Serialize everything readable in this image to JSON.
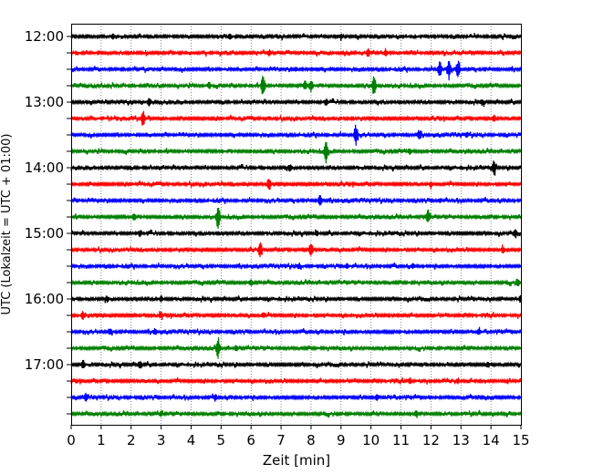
{
  "chart_data": {
    "type": "line",
    "title": "",
    "xlabel": "Zeit  [min]",
    "ylabel": "UTC (Lokalzeit = UTC + 01:00)",
    "xlim": [
      0,
      15
    ],
    "x_ticks": [
      "0",
      "1",
      "2",
      "3",
      "4",
      "5",
      "6",
      "7",
      "8",
      "9",
      "10",
      "11",
      "12",
      "13",
      "14",
      "15"
    ],
    "y_ticks": [
      "12:00",
      "13:00",
      "14:00",
      "15:00",
      "16:00",
      "17:00"
    ],
    "grid": "vertical dotted",
    "trace_interval_minutes": 15,
    "trace_colors": [
      "#000000",
      "#ff0000",
      "#0000ff",
      "#008000"
    ],
    "series": [
      {
        "start": "12:00",
        "events": [
          {
            "t": 1.4,
            "a": 0.25
          },
          {
            "t": 5.3,
            "a": 0.3
          },
          {
            "t": 9.0,
            "a": 0.25
          }
        ]
      },
      {
        "start": "12:15",
        "events": [
          {
            "t": 6.6,
            "a": 0.3
          },
          {
            "t": 9.9,
            "a": 0.4
          },
          {
            "t": 10.5,
            "a": 0.3
          }
        ]
      },
      {
        "start": "12:30",
        "events": [
          {
            "t": 12.3,
            "a": 0.9
          },
          {
            "t": 12.6,
            "a": 1.0
          },
          {
            "t": 12.9,
            "a": 0.9
          },
          {
            "t": 7.5,
            "a": 0.2
          }
        ]
      },
      {
        "start": "12:45",
        "events": [
          {
            "t": 4.6,
            "a": 0.35
          },
          {
            "t": 6.4,
            "a": 1.3
          },
          {
            "t": 7.8,
            "a": 0.5
          },
          {
            "t": 8.0,
            "a": 0.7
          },
          {
            "t": 10.1,
            "a": 1.1
          }
        ]
      },
      {
        "start": "13:00",
        "events": [
          {
            "t": 2.6,
            "a": 0.45
          },
          {
            "t": 8.5,
            "a": 0.3
          },
          {
            "t": 13.7,
            "a": 0.3
          }
        ]
      },
      {
        "start": "13:15",
        "events": [
          {
            "t": 2.4,
            "a": 0.9
          },
          {
            "t": 14.1,
            "a": 0.35
          }
        ]
      },
      {
        "start": "13:30",
        "events": [
          {
            "t": 9.5,
            "a": 1.1
          },
          {
            "t": 11.6,
            "a": 0.5
          },
          {
            "t": 13.2,
            "a": 0.25
          }
        ]
      },
      {
        "start": "13:45",
        "events": [
          {
            "t": 8.5,
            "a": 1.2
          },
          {
            "t": 11.3,
            "a": 0.3
          }
        ]
      },
      {
        "start": "14:00",
        "events": [
          {
            "t": 7.3,
            "a": 0.35
          },
          {
            "t": 14.1,
            "a": 0.75
          }
        ]
      },
      {
        "start": "14:15",
        "events": [
          {
            "t": 6.6,
            "a": 0.55
          },
          {
            "t": 12.0,
            "a": 0.3
          }
        ]
      },
      {
        "start": "14:30",
        "events": [
          {
            "t": 8.3,
            "a": 0.55
          },
          {
            "t": 12.3,
            "a": 0.25
          }
        ]
      },
      {
        "start": "14:45",
        "events": [
          {
            "t": 4.9,
            "a": 1.2
          },
          {
            "t": 11.9,
            "a": 0.8
          },
          {
            "t": 2.1,
            "a": 0.3
          }
        ]
      },
      {
        "start": "15:00",
        "events": [
          {
            "t": 2.3,
            "a": 0.3
          },
          {
            "t": 8.2,
            "a": 0.25
          },
          {
            "t": 14.8,
            "a": 0.45
          }
        ]
      },
      {
        "start": "15:15",
        "events": [
          {
            "t": 6.3,
            "a": 0.75
          },
          {
            "t": 8.0,
            "a": 0.75
          },
          {
            "t": 14.4,
            "a": 0.3
          }
        ]
      },
      {
        "start": "15:30",
        "events": [
          {
            "t": 7.6,
            "a": 0.3
          },
          {
            "t": 9.2,
            "a": 0.3
          },
          {
            "t": 11.4,
            "a": 0.25
          }
        ]
      },
      {
        "start": "15:45",
        "events": [
          {
            "t": 6.0,
            "a": 0.3
          },
          {
            "t": 14.9,
            "a": 0.35
          }
        ]
      },
      {
        "start": "16:00",
        "events": [
          {
            "t": 1.2,
            "a": 0.3
          },
          {
            "t": 3.0,
            "a": 0.3
          },
          {
            "t": 15.0,
            "a": 0.4
          }
        ]
      },
      {
        "start": "16:15",
        "events": [
          {
            "t": 0.4,
            "a": 0.45
          },
          {
            "t": 3.0,
            "a": 0.3
          },
          {
            "t": 6.4,
            "a": 0.25
          }
        ]
      },
      {
        "start": "16:30",
        "events": [
          {
            "t": 1.3,
            "a": 0.3
          },
          {
            "t": 2.8,
            "a": 0.3
          },
          {
            "t": 13.6,
            "a": 0.3
          }
        ]
      },
      {
        "start": "16:45",
        "events": [
          {
            "t": 4.9,
            "a": 1.1
          },
          {
            "t": 5.5,
            "a": 0.3
          }
        ]
      },
      {
        "start": "17:00",
        "events": [
          {
            "t": 0.4,
            "a": 0.4
          },
          {
            "t": 2.3,
            "a": 0.5
          },
          {
            "t": 13.9,
            "a": 0.3
          }
        ]
      },
      {
        "start": "17:15",
        "events": [
          {
            "t": 11.3,
            "a": 0.3
          },
          {
            "t": 12.9,
            "a": 0.25
          }
        ]
      },
      {
        "start": "17:30",
        "events": [
          {
            "t": 0.5,
            "a": 0.45
          },
          {
            "t": 4.8,
            "a": 0.35
          },
          {
            "t": 10.2,
            "a": 0.3
          }
        ]
      },
      {
        "start": "17:45",
        "events": [
          {
            "t": 3.0,
            "a": 0.25
          },
          {
            "t": 11.5,
            "a": 0.3
          }
        ]
      }
    ]
  }
}
